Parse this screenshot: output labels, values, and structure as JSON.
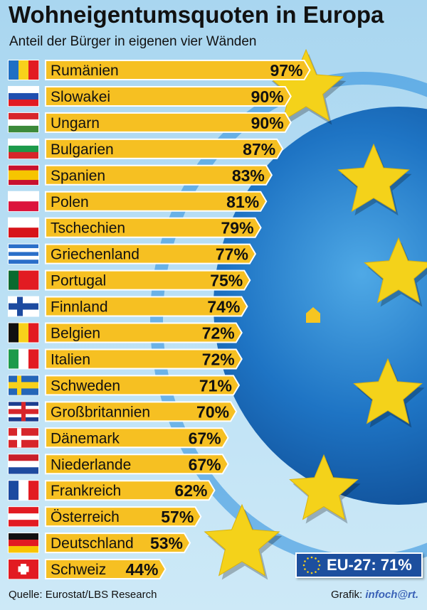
{
  "chart_data": {
    "type": "bar",
    "orientation": "horizontal",
    "title": "Wohneigentumsquoten in Europa",
    "subtitle": "Anteil der Bürger in eigenen vier Wänden",
    "xlabel": "",
    "ylabel": "",
    "unit": "%",
    "xlim": [
      0,
      100
    ],
    "categories": [
      "Rumänien",
      "Slowakei",
      "Ungarn",
      "Bulgarien",
      "Spanien",
      "Polen",
      "Tschechien",
      "Griechenland",
      "Portugal",
      "Finnland",
      "Belgien",
      "Italien",
      "Schweden",
      "Großbritannien",
      "Dänemark",
      "Niederlande",
      "Frankreich",
      "Österreich",
      "Deutschland",
      "Schweiz"
    ],
    "values": [
      97,
      90,
      90,
      87,
      83,
      81,
      79,
      77,
      75,
      74,
      72,
      72,
      71,
      70,
      67,
      67,
      62,
      57,
      53,
      44
    ],
    "value_labels": [
      "97%",
      "90%",
      "90%",
      "87%",
      "83%",
      "81%",
      "79%",
      "77%",
      "75%",
      "74%",
      "72%",
      "72%",
      "71%",
      "70%",
      "67%",
      "67%",
      "62%",
      "57%",
      "53%",
      "44%"
    ],
    "bar_color": "#f6c022",
    "annotation": "EU-27: 71%"
  },
  "flags": [
    {
      "dir": "v",
      "colors": [
        "#1f6fc4",
        "#f8d11b",
        "#e21b22"
      ]
    },
    {
      "dir": "h",
      "colors": [
        "#ffffff",
        "#1f4fb0",
        "#e21b22"
      ]
    },
    {
      "dir": "h",
      "colors": [
        "#d7262b",
        "#ffffff",
        "#3c8a3a"
      ]
    },
    {
      "dir": "h",
      "colors": [
        "#ffffff",
        "#1c9a4a",
        "#d7262b"
      ]
    },
    {
      "dir": "h",
      "colors": [
        "#c8102e",
        "#f6c500",
        "#f6c500",
        "#c8102e"
      ]
    },
    {
      "dir": "h",
      "colors": [
        "#ffffff",
        "#dc143c"
      ]
    },
    {
      "dir": "h",
      "colors": [
        "#ffffff",
        "#d7141a"
      ]
    },
    {
      "dir": "h",
      "colors": [
        "#2a6fc9",
        "#ffffff",
        "#2a6fc9",
        "#ffffff",
        "#2a6fc9"
      ]
    },
    {
      "dir": "v",
      "colors": [
        "#0a6a2f",
        "#e21b22",
        "#e21b22"
      ]
    },
    {
      "dir": "h",
      "colors": [
        "#ffffff",
        "#1c4aa0",
        "#ffffff"
      ]
    },
    {
      "dir": "v",
      "colors": [
        "#111111",
        "#f8d11b",
        "#e21b22"
      ]
    },
    {
      "dir": "v",
      "colors": [
        "#1c9a4a",
        "#ffffff",
        "#e21b22"
      ]
    },
    {
      "dir": "h",
      "colors": [
        "#2466b8",
        "#f8d11b",
        "#2466b8"
      ]
    },
    {
      "dir": "h",
      "colors": [
        "#1c3d8f",
        "#ffffff",
        "#d7262b",
        "#ffffff",
        "#1c3d8f"
      ]
    },
    {
      "dir": "h",
      "colors": [
        "#d7262b",
        "#ffffff",
        "#d7262b"
      ]
    },
    {
      "dir": "h",
      "colors": [
        "#c8202a",
        "#ffffff",
        "#1e4ba0"
      ]
    },
    {
      "dir": "v",
      "colors": [
        "#1c4aa0",
        "#ffffff",
        "#e21b22"
      ]
    },
    {
      "dir": "h",
      "colors": [
        "#e21b22",
        "#ffffff",
        "#e21b22"
      ]
    },
    {
      "dir": "h",
      "colors": [
        "#111111",
        "#e21b22",
        "#f8c500"
      ]
    },
    {
      "dir": "h",
      "colors": [
        "#e21b22"
      ]
    }
  ],
  "footer": {
    "source": "Quelle: Eurostat/LBS Research",
    "credit_label": "Grafik:",
    "credit_logo": "infoch@rt."
  }
}
